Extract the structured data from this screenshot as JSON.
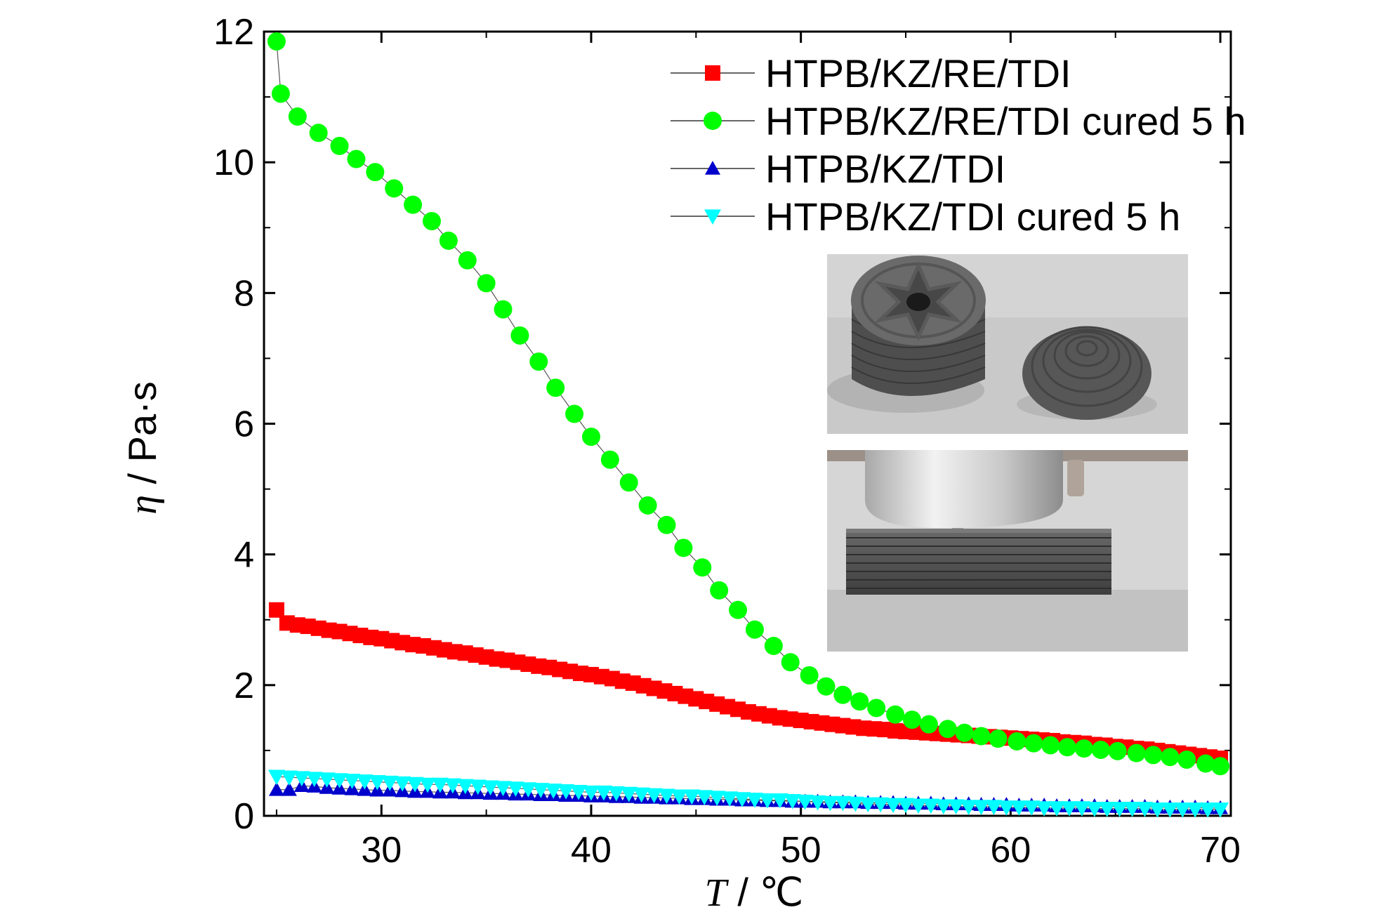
{
  "chart_data": {
    "type": "scatter",
    "title": "",
    "xlabel_italic": "T",
    "xlabel_unit": " / ℃",
    "ylabel_italic": "η",
    "ylabel_unit": " / Pa·s",
    "xlim": [
      24.4,
      70.5
    ],
    "ylim": [
      0,
      12
    ],
    "x_ticks": [
      30,
      40,
      50,
      60,
      70
    ],
    "y_ticks": [
      0,
      2,
      4,
      6,
      8,
      10,
      12
    ],
    "grid": false,
    "legend_position": "top-right",
    "series": [
      {
        "name": "HTPB/KZ/RE/TDI",
        "marker": "square",
        "color": "#ff0000",
        "x": [
          25,
          25.5,
          26,
          26.5,
          27,
          27.5,
          28,
          28.5,
          29,
          29.5,
          30,
          30.5,
          31,
          31.5,
          32,
          32.5,
          33,
          33.5,
          34,
          34.5,
          35,
          35.5,
          36,
          36.5,
          37,
          37.5,
          38,
          38.5,
          39,
          39.5,
          40,
          40.5,
          41,
          41.5,
          42,
          42.5,
          43,
          43.5,
          44,
          44.5,
          45,
          45.5,
          46,
          46.5,
          47,
          47.5,
          48,
          48.5,
          49,
          49.5,
          50,
          50.5,
          51,
          51.5,
          52,
          52.5,
          53,
          53.5,
          54,
          54.5,
          55,
          55.5,
          56,
          56.5,
          57,
          57.5,
          58,
          58.5,
          59,
          59.5,
          60,
          60.5,
          61,
          61.5,
          62,
          62.5,
          63,
          63.5,
          64,
          64.5,
          65,
          65.5,
          66,
          66.5,
          67,
          67.5,
          68,
          68.5,
          69,
          69.5,
          70
        ],
        "y": [
          3.15,
          2.95,
          2.92,
          2.9,
          2.87,
          2.84,
          2.82,
          2.79,
          2.76,
          2.73,
          2.71,
          2.68,
          2.65,
          2.62,
          2.6,
          2.57,
          2.54,
          2.51,
          2.49,
          2.46,
          2.43,
          2.4,
          2.38,
          2.35,
          2.32,
          2.29,
          2.27,
          2.24,
          2.21,
          2.18,
          2.16,
          2.13,
          2.1,
          2.06,
          2.03,
          1.99,
          1.95,
          1.91,
          1.87,
          1.83,
          1.79,
          1.75,
          1.71,
          1.67,
          1.63,
          1.59,
          1.56,
          1.53,
          1.5,
          1.48,
          1.46,
          1.44,
          1.42,
          1.4,
          1.38,
          1.36,
          1.34,
          1.33,
          1.32,
          1.3,
          1.29,
          1.28,
          1.27,
          1.26,
          1.25,
          1.24,
          1.23,
          1.22,
          1.21,
          1.2,
          1.19,
          1.18,
          1.17,
          1.16,
          1.15,
          1.13,
          1.12,
          1.11,
          1.09,
          1.08,
          1.06,
          1.05,
          1.03,
          1.02,
          1,
          0.98,
          0.96,
          0.94,
          0.92,
          0.9,
          0.88
        ]
      },
      {
        "name": "HTPB/KZ/RE/TDI cured 5 h",
        "marker": "circle",
        "color": "#00ff00",
        "x": [
          25,
          25.2,
          26,
          27,
          28,
          28.8,
          29.7,
          30.6,
          31.5,
          32.4,
          33.2,
          34.1,
          35,
          35.8,
          36.6,
          37.5,
          38.3,
          39.2,
          40,
          40.9,
          41.8,
          42.7,
          43.6,
          44.4,
          45.3,
          46.1,
          47,
          47.8,
          48.7,
          49.5,
          50.4,
          51.2,
          52,
          52.8,
          53.6,
          54.5,
          55.3,
          56.1,
          57,
          57.8,
          58.6,
          59.4,
          60.3,
          61.1,
          61.9,
          62.7,
          63.5,
          64.3,
          65.1,
          66,
          66.8,
          67.6,
          68.4,
          69.3,
          70
        ],
        "y": [
          11.85,
          11.05,
          10.7,
          10.45,
          10.25,
          10.05,
          9.85,
          9.6,
          9.35,
          9.1,
          8.8,
          8.5,
          8.15,
          7.75,
          7.35,
          6.95,
          6.55,
          6.15,
          5.8,
          5.45,
          5.1,
          4.75,
          4.45,
          4.1,
          3.8,
          3.45,
          3.15,
          2.85,
          2.6,
          2.35,
          2.15,
          1.98,
          1.85,
          1.75,
          1.65,
          1.55,
          1.47,
          1.4,
          1.33,
          1.27,
          1.22,
          1.18,
          1.14,
          1.11,
          1.08,
          1.05,
          1.03,
          1.01,
          0.99,
          0.96,
          0.93,
          0.9,
          0.86,
          0.8,
          0.76
        ]
      },
      {
        "name": "HTPB/KZ/TDI",
        "marker": "triangle-up",
        "color": "#0000cc",
        "x": [
          25,
          25.6,
          26.2,
          26.8,
          27.4,
          28,
          28.6,
          29.2,
          29.8,
          30.4,
          31,
          31.6,
          32.2,
          32.8,
          33.4,
          34,
          34.6,
          35.2,
          35.8,
          36.4,
          37,
          37.6,
          38.2,
          38.8,
          39.4,
          40,
          40.6,
          41.2,
          41.8,
          42.4,
          43,
          43.6,
          44.2,
          44.8,
          45.4,
          46,
          46.6,
          47.2,
          47.8,
          48.4,
          49,
          49.6,
          50.2,
          50.8,
          51.4,
          52,
          52.6,
          53.2,
          53.8,
          54.4,
          55,
          55.6,
          56.2,
          56.8,
          57.4,
          58,
          58.6,
          59.2,
          59.8,
          60.4,
          61,
          61.6,
          62.2,
          62.8,
          63.4,
          64,
          64.6,
          65.2,
          65.8,
          66.4,
          67,
          67.6,
          68.2,
          68.8,
          69.4,
          70
        ],
        "y": [
          0.4,
          0.4,
          0.46,
          0.45,
          0.43,
          0.42,
          0.41,
          0.4,
          0.39,
          0.39,
          0.38,
          0.37,
          0.37,
          0.36,
          0.36,
          0.35,
          0.35,
          0.34,
          0.34,
          0.33,
          0.33,
          0.32,
          0.32,
          0.31,
          0.31,
          0.3,
          0.3,
          0.29,
          0.29,
          0.28,
          0.28,
          0.27,
          0.27,
          0.26,
          0.26,
          0.25,
          0.25,
          0.24,
          0.24,
          0.23,
          0.23,
          0.22,
          0.22,
          0.22,
          0.21,
          0.21,
          0.21,
          0.2,
          0.2,
          0.2,
          0.19,
          0.19,
          0.19,
          0.18,
          0.18,
          0.18,
          0.17,
          0.17,
          0.17,
          0.16,
          0.16,
          0.16,
          0.15,
          0.15,
          0.15,
          0.15,
          0.14,
          0.14,
          0.14,
          0.14,
          0.13,
          0.13,
          0.13,
          0.13,
          0.12,
          0.12
        ]
      },
      {
        "name": "HTPB/KZ/TDI cured 5 h",
        "marker": "triangle-down",
        "color": "#00ffff",
        "x": [
          25,
          25.6,
          26.2,
          26.8,
          27.4,
          28,
          28.6,
          29.2,
          29.8,
          30.4,
          31,
          31.6,
          32.2,
          32.8,
          33.4,
          34,
          34.6,
          35.2,
          35.8,
          36.4,
          37,
          37.6,
          38.2,
          38.8,
          39.4,
          40,
          40.6,
          41.2,
          41.8,
          42.4,
          43,
          43.6,
          44.2,
          44.8,
          45.4,
          46,
          46.6,
          47.2,
          47.8,
          48.4,
          49,
          49.6,
          50.2,
          50.8,
          51.4,
          52,
          52.6,
          53.2,
          53.8,
          54.4,
          55,
          55.6,
          56.2,
          56.8,
          57.4,
          58,
          58.6,
          59.2,
          59.8,
          60.4,
          61,
          61.6,
          62.2,
          62.8,
          63.4,
          64,
          64.6,
          65.2,
          65.8,
          66.4,
          67,
          67.6,
          68.2,
          68.8,
          69.4,
          70
        ],
        "y": [
          0.6,
          0.59,
          0.58,
          0.57,
          0.56,
          0.55,
          0.54,
          0.53,
          0.52,
          0.51,
          0.5,
          0.49,
          0.48,
          0.48,
          0.47,
          0.46,
          0.45,
          0.44,
          0.43,
          0.42,
          0.41,
          0.4,
          0.39,
          0.38,
          0.37,
          0.36,
          0.36,
          0.35,
          0.34,
          0.33,
          0.32,
          0.31,
          0.3,
          0.3,
          0.29,
          0.28,
          0.27,
          0.26,
          0.25,
          0.24,
          0.24,
          0.23,
          0.22,
          0.21,
          0.2,
          0.2,
          0.19,
          0.18,
          0.18,
          0.17,
          0.17,
          0.16,
          0.16,
          0.15,
          0.15,
          0.14,
          0.14,
          0.14,
          0.13,
          0.13,
          0.13,
          0.12,
          0.12,
          0.12,
          0.12,
          0.11,
          0.11,
          0.11,
          0.11,
          0.11,
          0.1,
          0.1,
          0.1,
          0.1,
          0.1,
          0.1
        ]
      }
    ],
    "inset_photos": [
      {
        "name": "printed-grain-samples-photo"
      },
      {
        "name": "printing-process-photo"
      }
    ]
  }
}
